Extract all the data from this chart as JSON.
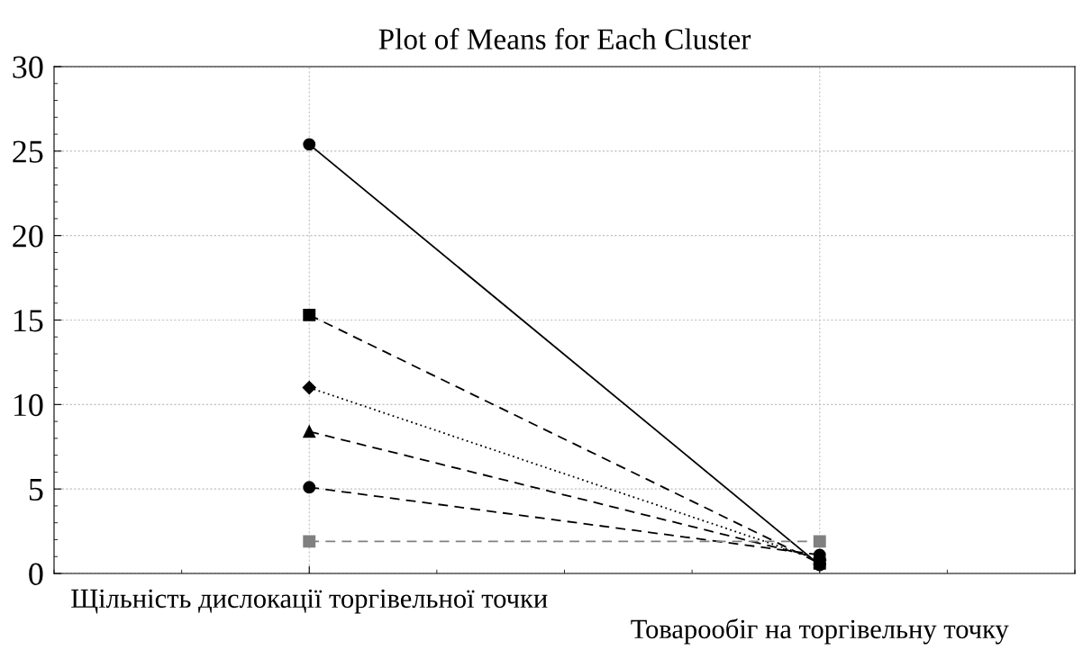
{
  "chart_data": {
    "type": "line",
    "title": "Plot of Means for Each Cluster",
    "categories": [
      "Щільність дислокації торгівельної точки",
      "Товарообіг на торгівельну точку"
    ],
    "series": [
      {
        "color": "#000000",
        "values": [
          25.4,
          0.5
        ],
        "marker": "circle",
        "line_style": "solid"
      },
      {
        "color": "#000000",
        "values": [
          15.3,
          0.6
        ],
        "marker": "square",
        "line_style": "dashed"
      },
      {
        "color": "#000000",
        "values": [
          11.0,
          0.8
        ],
        "marker": "diamond",
        "line_style": "dotted"
      },
      {
        "color": "#000000",
        "values": [
          8.4,
          0.9
        ],
        "marker": "triangle",
        "line_style": "dashed"
      },
      {
        "color": "#000000",
        "values": [
          5.1,
          1.1
        ],
        "marker": "circle",
        "line_style": "dashed"
      },
      {
        "color": "#808080",
        "values": [
          1.9,
          1.9
        ],
        "marker": "square",
        "line_style": "dashed"
      }
    ],
    "ylim": [
      0,
      30
    ],
    "yticks": [
      0,
      5,
      10,
      15,
      20,
      25,
      30
    ],
    "grid": true
  }
}
